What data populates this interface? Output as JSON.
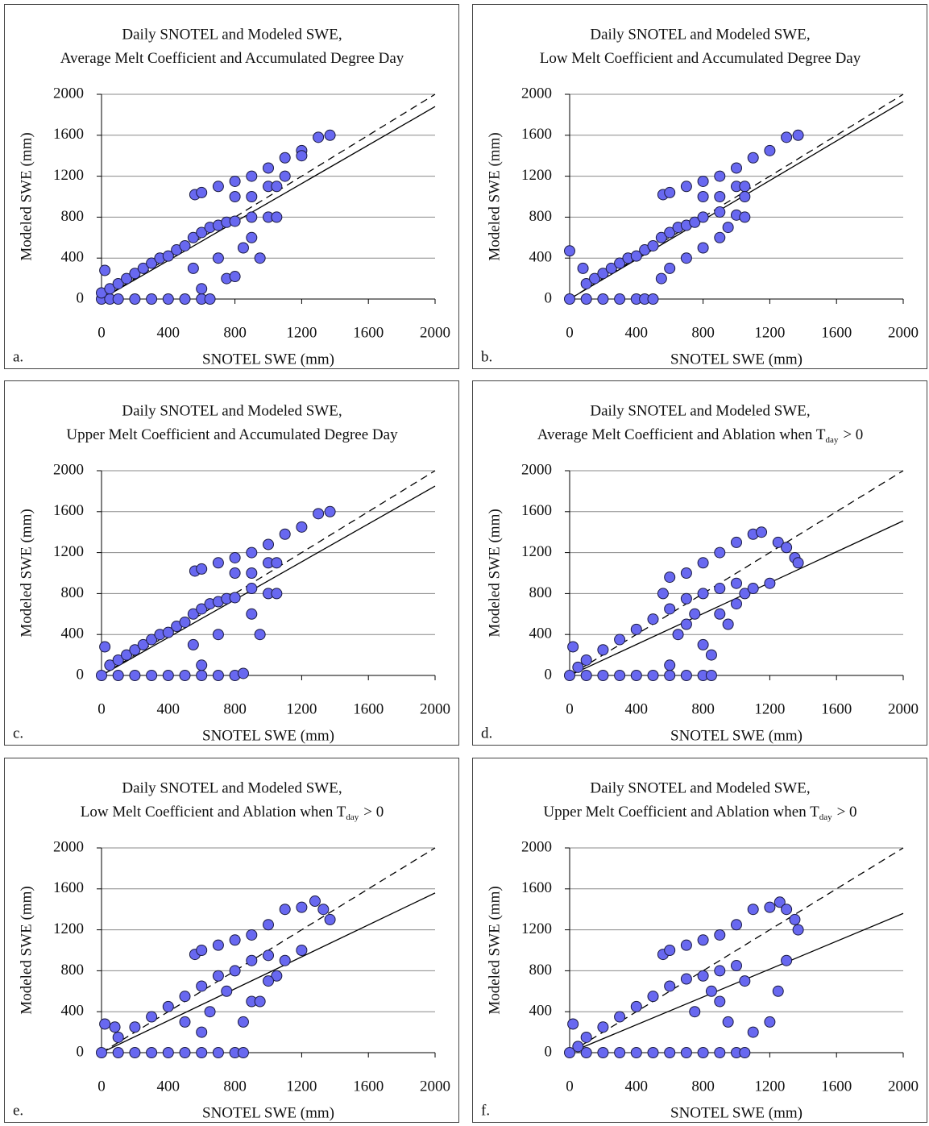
{
  "chart_data": [
    {
      "type": "scatter",
      "title": "Daily SNOTEL and Modeled SWE,",
      "subtitle": "Average Melt Coefficient and Accumulated Degree Day",
      "xlabel": "SNOTEL SWE (mm)",
      "ylabel": "Modeled SWE (mm)",
      "panel_label": "a.",
      "x": [
        0,
        50,
        100,
        200,
        300,
        400,
        500,
        600,
        650,
        20,
        0,
        50,
        100,
        150,
        200,
        250,
        300,
        350,
        400,
        450,
        500,
        550,
        600,
        650,
        700,
        750,
        800,
        900,
        1000,
        1050,
        560,
        600,
        700,
        800,
        900,
        1000,
        1100,
        1200,
        1300,
        1370,
        800,
        900,
        1000,
        1050,
        1100,
        1200,
        550,
        600,
        700,
        750,
        900,
        950,
        800,
        850
      ],
      "y": [
        0,
        0,
        0,
        0,
        0,
        0,
        0,
        0,
        0,
        280,
        60,
        100,
        150,
        200,
        250,
        300,
        350,
        400,
        420,
        480,
        520,
        600,
        650,
        700,
        720,
        750,
        760,
        800,
        800,
        800,
        1020,
        1040,
        1100,
        1150,
        1200,
        1280,
        1380,
        1450,
        1580,
        1600,
        1000,
        1000,
        1100,
        1100,
        1200,
        1400,
        300,
        100,
        400,
        200,
        600,
        400,
        220,
        500
      ],
      "color": "#6868f0",
      "xlim": [
        0,
        2000
      ],
      "ylim": [
        0,
        2000
      ],
      "xticks": [
        0,
        400,
        800,
        1200,
        1600,
        2000
      ],
      "yticks": [
        0,
        400,
        800,
        1200,
        1600,
        2000
      ],
      "grid": true,
      "identity_line": {
        "x": [
          0,
          2000
        ],
        "y": [
          0,
          2000
        ]
      },
      "fit_line": {
        "x": [
          0,
          2000
        ],
        "y": [
          0,
          1880
        ]
      }
    },
    {
      "type": "scatter",
      "title": "Daily SNOTEL and Modeled SWE,",
      "subtitle": "Low Melt Coefficient and Accumulated Degree Day",
      "xlabel": "SNOTEL SWE (mm)",
      "ylabel": "Modeled SWE (mm)",
      "panel_label": "b.",
      "x": [
        0,
        100,
        200,
        300,
        400,
        450,
        0,
        80,
        100,
        150,
        200,
        250,
        300,
        350,
        400,
        450,
        500,
        550,
        600,
        650,
        700,
        750,
        800,
        900,
        1000,
        1050,
        560,
        600,
        700,
        800,
        900,
        1000,
        1100,
        1200,
        1300,
        1370,
        800,
        900,
        1000,
        1050,
        500,
        550,
        600,
        700,
        800,
        900,
        950,
        1050
      ],
      "y": [
        0,
        0,
        0,
        0,
        0,
        0,
        470,
        300,
        150,
        200,
        250,
        300,
        350,
        400,
        420,
        480,
        520,
        600,
        650,
        700,
        720,
        750,
        800,
        850,
        820,
        800,
        1020,
        1040,
        1100,
        1150,
        1200,
        1280,
        1380,
        1450,
        1580,
        1600,
        1000,
        1000,
        1100,
        1100,
        0,
        200,
        300,
        400,
        500,
        600,
        700,
        1000
      ],
      "color": "#6868f0",
      "xlim": [
        0,
        2000
      ],
      "ylim": [
        0,
        2000
      ],
      "xticks": [
        0,
        400,
        800,
        1200,
        1600,
        2000
      ],
      "yticks": [
        0,
        400,
        800,
        1200,
        1600,
        2000
      ],
      "grid": true,
      "identity_line": {
        "x": [
          0,
          2000
        ],
        "y": [
          0,
          2000
        ]
      },
      "fit_line": {
        "x": [
          0,
          2000
        ],
        "y": [
          0,
          1930
        ]
      }
    },
    {
      "type": "scatter",
      "title": "Daily SNOTEL and Modeled SWE,",
      "subtitle": "Upper Melt Coefficient and Accumulated Degree Day",
      "xlabel": "SNOTEL SWE (mm)",
      "ylabel": "Modeled SWE (mm)",
      "panel_label": "c.",
      "x": [
        0,
        100,
        200,
        300,
        400,
        500,
        600,
        700,
        800,
        850,
        20,
        50,
        100,
        150,
        200,
        250,
        300,
        350,
        400,
        450,
        500,
        550,
        600,
        650,
        700,
        750,
        800,
        900,
        1000,
        1050,
        560,
        600,
        700,
        800,
        900,
        1000,
        1100,
        1200,
        1300,
        1370,
        800,
        900,
        1000,
        1050,
        550,
        600,
        700,
        900,
        950
      ],
      "y": [
        0,
        0,
        0,
        0,
        0,
        0,
        0,
        0,
        0,
        20,
        280,
        100,
        150,
        200,
        250,
        300,
        350,
        400,
        420,
        480,
        520,
        600,
        650,
        700,
        720,
        750,
        760,
        850,
        800,
        800,
        1020,
        1040,
        1100,
        1150,
        1200,
        1280,
        1380,
        1450,
        1580,
        1600,
        1000,
        1000,
        1100,
        1100,
        300,
        100,
        400,
        600,
        400
      ],
      "color": "#6868f0",
      "xlim": [
        0,
        2000
      ],
      "ylim": [
        0,
        2000
      ],
      "xticks": [
        0,
        400,
        800,
        1200,
        1600,
        2000
      ],
      "yticks": [
        0,
        400,
        800,
        1200,
        1600,
        2000
      ],
      "grid": true,
      "identity_line": {
        "x": [
          0,
          2000
        ],
        "y": [
          0,
          2000
        ]
      },
      "fit_line": {
        "x": [
          0,
          2000
        ],
        "y": [
          0,
          1850
        ]
      }
    },
    {
      "type": "scatter",
      "title": "Daily SNOTEL and Modeled SWE,",
      "subtitle": "Average Melt Coefficient and Ablation when T",
      "subtitle_sub": "day",
      "subtitle_end": "> 0",
      "xlabel": "SNOTEL SWE (mm)",
      "ylabel": "Modeled SWE (mm)",
      "panel_label": "d.",
      "x": [
        0,
        100,
        200,
        300,
        400,
        500,
        600,
        700,
        800,
        850,
        20,
        50,
        100,
        200,
        300,
        400,
        500,
        600,
        700,
        800,
        900,
        1000,
        1050,
        560,
        600,
        700,
        800,
        900,
        1000,
        1100,
        1150,
        1250,
        1300,
        1350,
        1370,
        1200,
        1100,
        1000,
        900,
        700,
        800,
        850,
        600,
        650,
        750,
        950
      ],
      "y": [
        0,
        0,
        0,
        0,
        0,
        0,
        0,
        0,
        0,
        0,
        280,
        80,
        150,
        250,
        350,
        450,
        550,
        650,
        750,
        800,
        850,
        900,
        800,
        800,
        960,
        1000,
        1100,
        1200,
        1300,
        1380,
        1400,
        1300,
        1250,
        1150,
        1100,
        900,
        850,
        700,
        600,
        500,
        300,
        200,
        100,
        400,
        600,
        500
      ],
      "color": "#6868f0",
      "xlim": [
        0,
        2000
      ],
      "ylim": [
        0,
        2000
      ],
      "xticks": [
        0,
        400,
        800,
        1200,
        1600,
        2000
      ],
      "yticks": [
        0,
        400,
        800,
        1200,
        1600,
        2000
      ],
      "grid": true,
      "identity_line": {
        "x": [
          0,
          2000
        ],
        "y": [
          0,
          2000
        ]
      },
      "fit_line": {
        "x": [
          0,
          2000
        ],
        "y": [
          0,
          1510
        ]
      }
    },
    {
      "type": "scatter",
      "title": "Daily SNOTEL and Modeled SWE,",
      "subtitle": "Low Melt Coefficient and Ablation when T",
      "subtitle_sub": "day",
      "subtitle_end": "> 0",
      "xlabel": "SNOTEL SWE (mm)",
      "ylabel": "Modeled SWE (mm)",
      "panel_label": "e.",
      "x": [
        0,
        100,
        200,
        300,
        400,
        500,
        600,
        700,
        800,
        850,
        20,
        80,
        100,
        200,
        300,
        400,
        500,
        600,
        700,
        800,
        900,
        1000,
        1050,
        560,
        600,
        700,
        800,
        900,
        1000,
        1100,
        1200,
        1280,
        1330,
        1370,
        1200,
        1100,
        1000,
        900,
        500,
        600,
        650,
        750,
        850,
        950
      ],
      "y": [
        0,
        0,
        0,
        0,
        0,
        0,
        0,
        0,
        0,
        0,
        280,
        250,
        150,
        250,
        350,
        450,
        550,
        650,
        750,
        800,
        900,
        950,
        750,
        960,
        1000,
        1050,
        1100,
        1150,
        1250,
        1400,
        1420,
        1480,
        1400,
        1300,
        1000,
        900,
        700,
        500,
        300,
        200,
        400,
        600,
        300,
        500
      ],
      "color": "#6868f0",
      "xlim": [
        0,
        2000
      ],
      "ylim": [
        0,
        2000
      ],
      "xticks": [
        0,
        400,
        800,
        1200,
        1600,
        2000
      ],
      "yticks": [
        0,
        400,
        800,
        1200,
        1600,
        2000
      ],
      "grid": true,
      "identity_line": {
        "x": [
          0,
          2000
        ],
        "y": [
          0,
          2000
        ]
      },
      "fit_line": {
        "x": [
          0,
          2000
        ],
        "y": [
          0,
          1560
        ]
      }
    },
    {
      "type": "scatter",
      "title": "Daily SNOTEL and Modeled SWE,",
      "subtitle": "Upper Melt Coefficient and Ablation when T",
      "subtitle_sub": "day",
      "subtitle_end": "> 0",
      "xlabel": "SNOTEL SWE (mm)",
      "ylabel": "Modeled SWE (mm)",
      "panel_label": "f.",
      "x": [
        0,
        100,
        200,
        300,
        400,
        500,
        600,
        700,
        800,
        900,
        1000,
        1050,
        20,
        50,
        100,
        200,
        300,
        400,
        500,
        600,
        700,
        800,
        900,
        1000,
        560,
        600,
        700,
        800,
        900,
        1000,
        1100,
        1200,
        1260,
        1300,
        1350,
        1370,
        1300,
        1250,
        1200,
        1100,
        1050,
        900,
        950,
        750,
        850
      ],
      "y": [
        0,
        0,
        0,
        0,
        0,
        0,
        0,
        0,
        0,
        0,
        0,
        0,
        280,
        60,
        150,
        250,
        350,
        450,
        550,
        650,
        720,
        750,
        800,
        850,
        960,
        1000,
        1050,
        1100,
        1150,
        1250,
        1400,
        1420,
        1470,
        1400,
        1300,
        1200,
        900,
        600,
        300,
        200,
        700,
        500,
        300,
        400,
        600
      ],
      "color": "#6868f0",
      "xlim": [
        0,
        2000
      ],
      "ylim": [
        0,
        2000
      ],
      "xticks": [
        0,
        400,
        800,
        1200,
        1600,
        2000
      ],
      "yticks": [
        0,
        400,
        800,
        1200,
        1600,
        2000
      ],
      "grid": true,
      "identity_line": {
        "x": [
          0,
          2000
        ],
        "y": [
          0,
          2000
        ]
      },
      "fit_line": {
        "x": [
          0,
          2000
        ],
        "y": [
          0,
          1360
        ]
      }
    }
  ]
}
